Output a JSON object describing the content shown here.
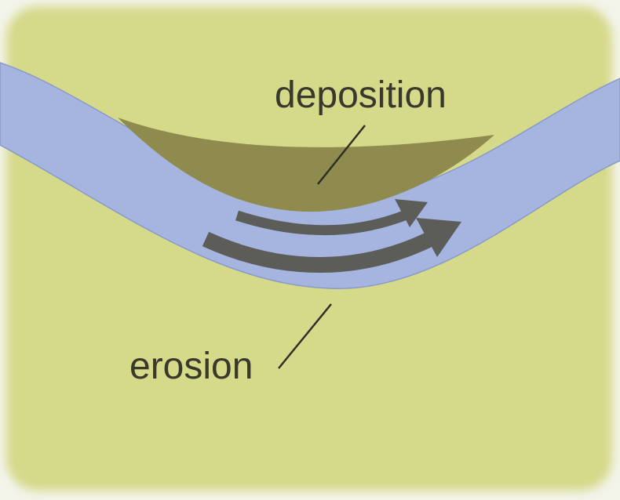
{
  "diagram": {
    "labels": {
      "deposition": "deposition",
      "erosion": "erosion"
    },
    "colors": {
      "land": "#d5d98a",
      "water": "#a5b5e0",
      "sediment": "#8f8a4e",
      "arrow": "#5c5c58",
      "text": "#38382b",
      "leader": "#2e2e24"
    }
  }
}
